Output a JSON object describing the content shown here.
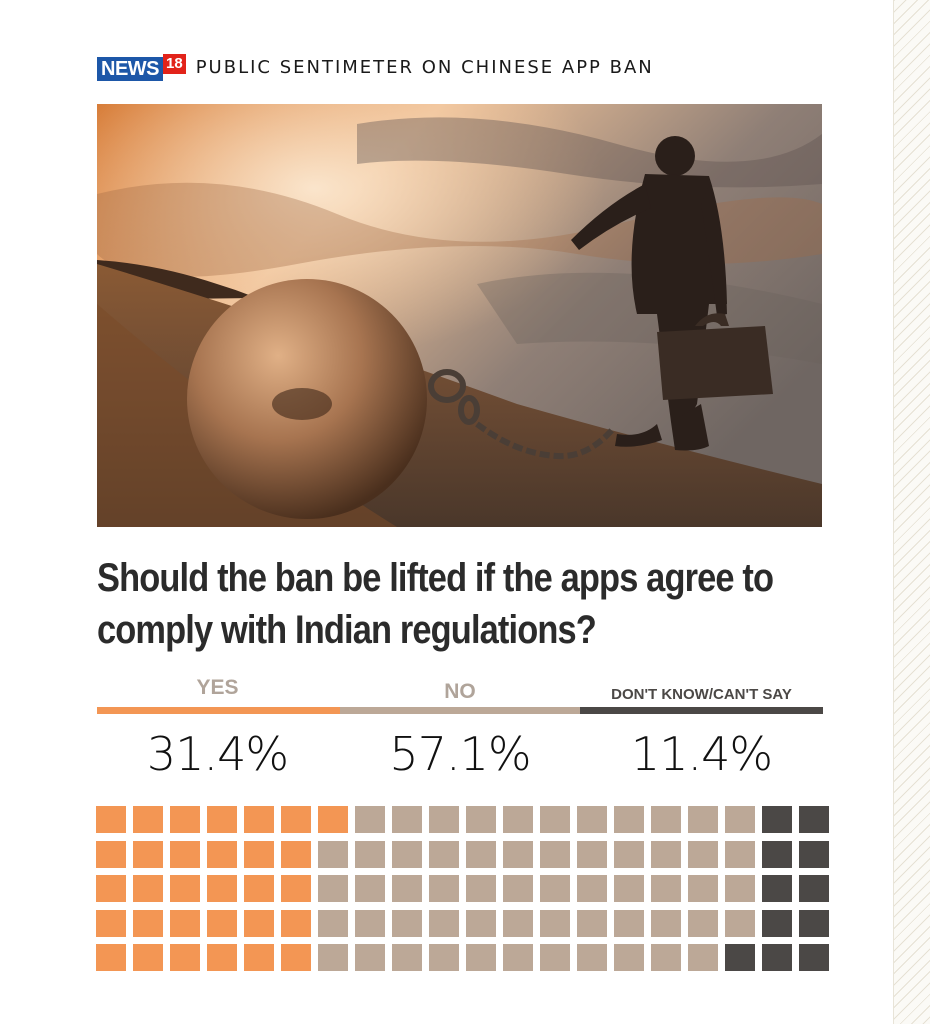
{
  "header": {
    "logo_text": "NEWS",
    "logo_number": "18",
    "title": "PUBLIC SENTIMETER ON CHINESE APP BAN"
  },
  "photo": {
    "description_icon": "businessman-with-ball-and-chain-photo"
  },
  "question": "Should the ban be lifted if the apps agree to comply with Indian regulations?",
  "colors": {
    "yes": "#f39654",
    "no": "#bca897",
    "dont_know": "#4b4846"
  },
  "chart_data": {
    "type": "waffle",
    "title": "Should the ban be lifted if the apps agree to comply with Indian regulations?",
    "categories": [
      "YES",
      "NO",
      "DON'T KNOW/CAN'T SAY"
    ],
    "values": [
      31.4,
      57.1,
      11.4
    ],
    "value_labels": [
      "31.4%",
      "57.1%",
      "11.4%"
    ],
    "cell_counts": [
      31,
      58,
      11
    ],
    "grid_rows": 5,
    "grid_cols": 20
  }
}
